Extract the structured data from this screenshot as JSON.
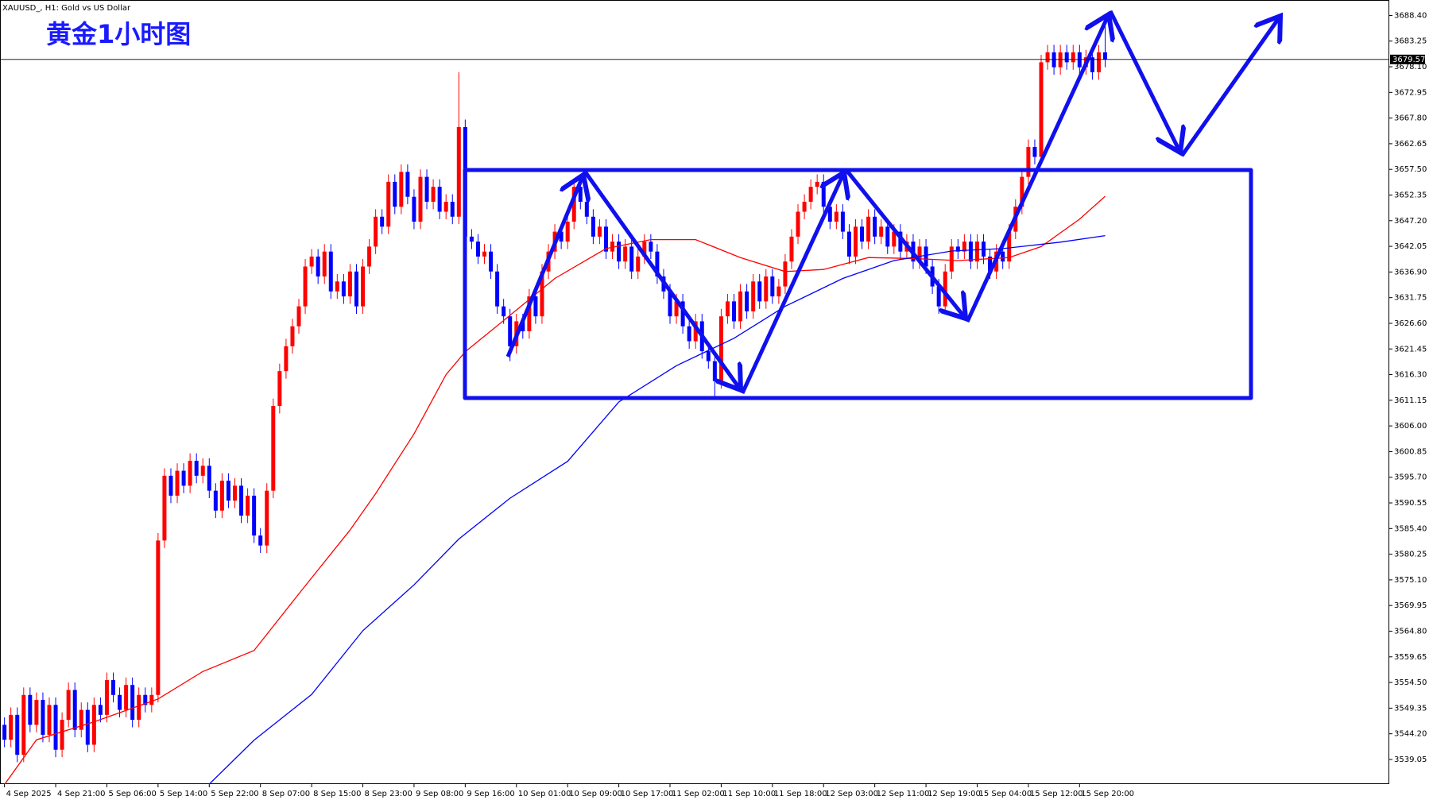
{
  "chart_data": {
    "type": "candlestick",
    "title": "黄金1小时图",
    "subtitle": "XAUUSD_, H1:  Gold vs US Dollar",
    "up_color": "#ff0000",
    "down_color": "#0000ff",
    "open": [
      3546,
      3543,
      3548,
      3540,
      3552,
      3546,
      3551,
      3544,
      3550,
      3541,
      3547,
      3553,
      3545,
      3549,
      3542,
      3550,
      3548,
      3555,
      3552,
      3549,
      3554,
      3547,
      3552,
      3550,
      3552,
      3583,
      3596,
      3592,
      3597,
      3594,
      3599,
      3596,
      3598,
      3593,
      3589,
      3595,
      3591,
      3594,
      3588,
      3592,
      3584,
      3582,
      3593,
      3610,
      3617,
      3622,
      3626,
      3630,
      3638,
      3640,
      3636,
      3641,
      3633,
      3635,
      3632,
      3637,
      3630,
      3638,
      3642,
      3648,
      3646,
      3655,
      3650,
      3657,
      3652,
      3647,
      3656,
      3651,
      3654,
      3649,
      3651,
      3648,
      3666,
      3644,
      3643,
      3640,
      3641,
      3637,
      3630,
      3628,
      3622,
      3627,
      3625,
      3632,
      3628,
      3637,
      3641,
      3645,
      3643,
      3647,
      3654,
      3651,
      3648,
      3644,
      3646,
      3641,
      3643,
      3639,
      3642,
      3637,
      3640,
      3643,
      3641,
      3636,
      3633,
      3628,
      3631,
      3626,
      3623,
      3627,
      3621,
      3619,
      3615,
      3628,
      3631,
      3627,
      3633,
      3629,
      3635,
      3631,
      3636,
      3632,
      3634,
      3639,
      3644,
      3649,
      3651,
      3654,
      3655,
      3650,
      3647,
      3649,
      3645,
      3640,
      3646,
      3643,
      3648,
      3644,
      3646,
      3642,
      3645,
      3641,
      3643,
      3639,
      3642,
      3638,
      3634,
      3630,
      3637,
      3642,
      3641,
      3643,
      3639,
      3643,
      3640,
      3637,
      3641,
      3639,
      3645,
      3650,
      3656,
      3662,
      3660,
      3679,
      3681,
      3678,
      3681,
      3679,
      3681,
      3678,
      3680,
      3677,
      3681
    ],
    "high": [
      3547.5,
      3549.5,
      3549.5,
      3553.5,
      3553.5,
      3552.5,
      3552.5,
      3551.5,
      3551.5,
      3548.5,
      3554.5,
      3554.5,
      3550.5,
      3550.5,
      3551.5,
      3551.5,
      3556.5,
      3556.5,
      3553.5,
      3555.5,
      3555.5,
      3553.5,
      3553.5,
      3553.5,
      3584.5,
      3597.5,
      3597.5,
      3598.5,
      3598.5,
      3600.5,
      3600.5,
      3599.5,
      3599.5,
      3594.5,
      3596.5,
      3596.5,
      3595.5,
      3595.5,
      3593.5,
      3593.5,
      3585.5,
      3594.5,
      3611.5,
      3618.5,
      3623.5,
      3627.5,
      3631.5,
      3639.5,
      3641.5,
      3641.5,
      3642.5,
      3642.5,
      3636.5,
      3636.5,
      3638.5,
      3638.5,
      3639.5,
      3643.5,
      3649.5,
      3649.5,
      3656.5,
      3656.5,
      3658.5,
      3658.5,
      3653.5,
      3657.5,
      3657.5,
      3655.5,
      3655.5,
      3652.5,
      3652.5,
      3677,
      3667.5,
      3645.5,
      3644.5,
      3642.5,
      3642.5,
      3638.5,
      3631.5,
      3629.5,
      3628.5,
      3628.5,
      3633.5,
      3633.5,
      3638.5,
      3642.5,
      3646.5,
      3646.5,
      3648.5,
      3655.5,
      3655.5,
      3652.5,
      3649.5,
      3647.5,
      3647.5,
      3644.5,
      3644.5,
      3643.5,
      3643.5,
      3641.5,
      3644.5,
      3644.5,
      3642.5,
      3637.5,
      3634.5,
      3632.5,
      3632.5,
      3627.5,
      3628.5,
      3628.5,
      3622.5,
      3620.5,
      3629.5,
      3632.5,
      3632.5,
      3634.5,
      3634.5,
      3636.5,
      3636.5,
      3637.5,
      3637.5,
      3635.5,
      3640.5,
      3645.5,
      3650.5,
      3652.5,
      3655.5,
      3656.5,
      3656.5,
      3651.5,
      3650.5,
      3650.5,
      3646.5,
      3647.5,
      3647.5,
      3649.5,
      3649.5,
      3647.5,
      3647.5,
      3646.5,
      3646.5,
      3644.5,
      3644.5,
      3643.5,
      3643.5,
      3639.5,
      3635.5,
      3638.5,
      3643.5,
      3643.5,
      3644.5,
      3644.5,
      3644.5,
      3644.5,
      3641.5,
      3642.5,
      3642.5,
      3646.5,
      3651.5,
      3657.5,
      3663.5,
      3663.5,
      3680.5,
      3682.5,
      3682.5,
      3682.5,
      3682.5,
      3682.5,
      3682.5,
      3681.5,
      3681.5,
      3682.5,
      3688.4
    ],
    "low": [
      3541.5,
      3541.5,
      3538.5,
      3538.5,
      3544.5,
      3544.5,
      3542.5,
      3542.5,
      3539.5,
      3539.5,
      3545.5,
      3543.5,
      3543.5,
      3540.5,
      3540.5,
      3546.5,
      3546.5,
      3550.5,
      3547.5,
      3547.5,
      3545.5,
      3545.5,
      3548.5,
      3548.5,
      3550.5,
      3581.5,
      3590.5,
      3590.5,
      3592.5,
      3592.5,
      3594.5,
      3594.5,
      3591.5,
      3587.5,
      3587.5,
      3589.5,
      3589.5,
      3586.5,
      3586.5,
      3582.5,
      3580.5,
      3580.5,
      3591.5,
      3608.5,
      3615.5,
      3620.5,
      3624.5,
      3628.5,
      3636.5,
      3634.5,
      3634.5,
      3631.5,
      3631.5,
      3630.5,
      3630.5,
      3628.5,
      3628.5,
      3636.5,
      3640.5,
      3644.5,
      3644.5,
      3648.5,
      3648.5,
      3650.5,
      3645.5,
      3645.5,
      3649.5,
      3649.5,
      3647.5,
      3647.5,
      3646.5,
      3646.5,
      3642.5,
      3641.5,
      3638.5,
      3638.5,
      3635.5,
      3628.5,
      3626.5,
      3619,
      3620.5,
      3623.5,
      3623.5,
      3626.5,
      3626.5,
      3635.5,
      3639.5,
      3641.5,
      3641.5,
      3645.5,
      3649.5,
      3646.5,
      3642.5,
      3642.5,
      3639.5,
      3639.5,
      3637.5,
      3637.5,
      3635.5,
      3635.5,
      3638.5,
      3639.5,
      3634.5,
      3631.5,
      3626.5,
      3626.5,
      3624.5,
      3621.5,
      3621.5,
      3619.5,
      3617.5,
      3612,
      3613.5,
      3626.5,
      3625.5,
      3625.5,
      3627.5,
      3627.5,
      3629.5,
      3629.5,
      3630.5,
      3630.5,
      3632.5,
      3637.5,
      3642.5,
      3647.5,
      3649.5,
      3652.5,
      3648.5,
      3645.5,
      3645.5,
      3643.5,
      3638.5,
      3638.5,
      3641.5,
      3641.5,
      3642.5,
      3642.5,
      3640.5,
      3640.5,
      3639.5,
      3639.5,
      3637.5,
      3637.5,
      3636.5,
      3632.5,
      3628.5,
      3628.5,
      3635.5,
      3639.5,
      3639.5,
      3637.5,
      3637.5,
      3638.5,
      3635.5,
      3635.5,
      3637.5,
      3637.5,
      3643.5,
      3648.5,
      3654.5,
      3658.5,
      3658.5,
      3677.5,
      3676.5,
      3676.5,
      3677.5,
      3677.5,
      3676.5,
      3676.5,
      3675.5,
      3675.5,
      3678
    ],
    "close": [
      3543,
      3548,
      3540,
      3552,
      3546,
      3551,
      3544,
      3550,
      3541,
      3547,
      3553,
      3545,
      3549,
      3542,
      3550,
      3548,
      3555,
      3552,
      3549,
      3554,
      3547,
      3552,
      3550,
      3552,
      3583,
      3596,
      3592,
      3597,
      3594,
      3599,
      3596,
      3598,
      3593,
      3589,
      3595,
      3591,
      3594,
      3588,
      3592,
      3584,
      3582,
      3593,
      3610,
      3617,
      3622,
      3626,
      3630,
      3638,
      3640,
      3636,
      3641,
      3633,
      3635,
      3632,
      3637,
      3630,
      3638,
      3642,
      3648,
      3646,
      3655,
      3650,
      3657,
      3652,
      3647,
      3656,
      3651,
      3654,
      3649,
      3651,
      3648,
      3666,
      3644,
      3643,
      3640,
      3641,
      3637,
      3630,
      3628,
      3622,
      3627,
      3625,
      3632,
      3628,
      3637,
      3641,
      3645,
      3643,
      3647,
      3654,
      3651,
      3648,
      3644,
      3646,
      3641,
      3643,
      3639,
      3642,
      3637,
      3640,
      3643,
      3641,
      3636,
      3633,
      3628,
      3631,
      3626,
      3623,
      3627,
      3621,
      3619,
      3615,
      3628,
      3631,
      3627,
      3633,
      3629,
      3635,
      3631,
      3636,
      3632,
      3634,
      3639,
      3644,
      3649,
      3651,
      3654,
      3655,
      3650,
      3647,
      3649,
      3645,
      3640,
      3646,
      3643,
      3648,
      3644,
      3646,
      3642,
      3645,
      3641,
      3643,
      3639,
      3642,
      3638,
      3634,
      3630,
      3637,
      3642,
      3641,
      3643,
      3639,
      3643,
      3640,
      3637,
      3641,
      3639,
      3645,
      3650,
      3656,
      3662,
      3660,
      3679,
      3681,
      3678,
      3681,
      3679,
      3681,
      3678,
      3680,
      3677,
      3681,
      3679.57
    ],
    "series": [
      {
        "color": "#ff0000",
        "x": [
          0,
          5,
          14,
          24,
          31,
          39,
          46,
          54,
          58,
          64,
          69,
          72,
          79,
          86,
          94,
          101,
          108,
          115,
          122,
          128,
          135,
          142,
          149,
          157,
          162,
          168,
          172
        ],
        "values": [
          3534.0,
          3543.0,
          3546.6,
          3551.2,
          3556.7,
          3560.9,
          3572.3,
          3585.1,
          3592.4,
          3604.4,
          3616.3,
          3620.9,
          3628.2,
          3635.6,
          3641.6,
          3643.4,
          3643.4,
          3639.8,
          3637.0,
          3637.4,
          3639.8,
          3639.6,
          3639.2,
          3639.8,
          3642.0,
          3647.5,
          3652.1
        ]
      },
      {
        "color": "#0000ff",
        "x": [
          32,
          39,
          48,
          56,
          64,
          71,
          79,
          88,
          96,
          105,
          114,
          122,
          131,
          139,
          148,
          156,
          165,
          172
        ],
        "values": [
          3534.1,
          3542.9,
          3552.1,
          3564.9,
          3574.1,
          3583.3,
          3591.5,
          3598.9,
          3610.8,
          3618.1,
          3623.6,
          3630.0,
          3635.6,
          3639.2,
          3641.1,
          3641.6,
          3642.9,
          3644.2
        ]
      }
    ],
    "xlim": [
      -0.7,
      216.4
    ],
    "xticks": [
      {
        "value": 0,
        "label": "4 Sep 2025"
      },
      {
        "value": 8,
        "label": "4 Sep 21:00"
      },
      {
        "value": 16,
        "label": "5 Sep 06:00"
      },
      {
        "value": 24,
        "label": "5 Sep 14:00"
      },
      {
        "value": 32,
        "label": "5 Sep 22:00"
      },
      {
        "value": 40,
        "label": "8 Sep 07:00"
      },
      {
        "value": 48,
        "label": "8 Sep 15:00"
      },
      {
        "value": 56,
        "label": "8 Sep 23:00"
      },
      {
        "value": 64,
        "label": "9 Sep 08:00"
      },
      {
        "value": 72,
        "label": "9 Sep 16:00"
      },
      {
        "value": 80,
        "label": "10 Sep 01:00"
      },
      {
        "value": 88,
        "label": "10 Sep 09:00"
      },
      {
        "value": 96,
        "label": "10 Sep 17:00"
      },
      {
        "value": 104,
        "label": "11 Sep 02:00"
      },
      {
        "value": 112,
        "label": "11 Sep 10:00"
      },
      {
        "value": 120,
        "label": "11 Sep 18:00"
      },
      {
        "value": 128,
        "label": "12 Sep 03:00"
      },
      {
        "value": 136,
        "label": "12 Sep 11:00"
      },
      {
        "value": 144,
        "label": "12 Sep 19:00"
      },
      {
        "value": 152,
        "label": "15 Sep 04:00"
      },
      {
        "value": 160,
        "label": "15 Sep 12:00"
      },
      {
        "value": 168,
        "label": "15 Sep 20:00"
      }
    ],
    "ylim": [
      3534.1,
      3691.5
    ],
    "yticks": [
      {
        "value": 3539.05,
        "label": "3539.05"
      },
      {
        "value": 3544.2,
        "label": "3544.20"
      },
      {
        "value": 3549.35,
        "label": "3549.35"
      },
      {
        "value": 3554.5,
        "label": "3554.50"
      },
      {
        "value": 3559.65,
        "label": "3559.65"
      },
      {
        "value": 3564.8,
        "label": "3564.80"
      },
      {
        "value": 3569.95,
        "label": "3569.95"
      },
      {
        "value": 3575.1,
        "label": "3575.10"
      },
      {
        "value": 3580.25,
        "label": "3580.25"
      },
      {
        "value": 3585.4,
        "label": "3585.40"
      },
      {
        "value": 3590.55,
        "label": "3590.55"
      },
      {
        "value": 3595.7,
        "label": "3595.70"
      },
      {
        "value": 3600.85,
        "label": "3600.85"
      },
      {
        "value": 3606,
        "label": "3606.00"
      },
      {
        "value": 3611.15,
        "label": "3611.15"
      },
      {
        "value": 3616.3,
        "label": "3616.30"
      },
      {
        "value": 3621.45,
        "label": "3621.45"
      },
      {
        "value": 3626.6,
        "label": "3626.60"
      },
      {
        "value": 3631.75,
        "label": "3631.75"
      },
      {
        "value": 3636.9,
        "label": "3636.90"
      },
      {
        "value": 3642.05,
        "label": "3642.05"
      },
      {
        "value": 3647.2,
        "label": "3647.20"
      },
      {
        "value": 3652.35,
        "label": "3652.35"
      },
      {
        "value": 3657.5,
        "label": "3657.50"
      },
      {
        "value": 3662.65,
        "label": "3662.65"
      },
      {
        "value": 3667.8,
        "label": "3667.80"
      },
      {
        "value": 3672.95,
        "label": "3672.95"
      },
      {
        "value": 3678.1,
        "label": "3678.10"
      },
      {
        "value": 3683.25,
        "label": "3683.25"
      },
      {
        "value": 3688.4,
        "label": "3688.40"
      }
    ],
    "grid": false
  }
}
